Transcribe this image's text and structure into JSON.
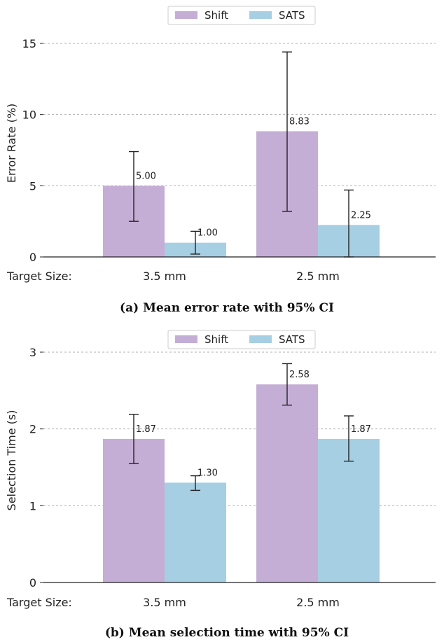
{
  "colors": {
    "shift": "#c5aed5",
    "sats": "#a6cfe3",
    "grid": "#b0b0b0",
    "axis": "#222222"
  },
  "chart_data": [
    {
      "type": "bar",
      "caption": "(a) Mean error rate with 95% CI",
      "ylabel": "Error Rate (%)",
      "xlabel": "Target Size:",
      "categories": [
        "3.5 mm",
        "2.5 mm"
      ],
      "ylim": [
        0,
        15
      ],
      "yticks": [
        0,
        5,
        10,
        15
      ],
      "grid": true,
      "legend_position": "top-center",
      "series": [
        {
          "name": "Shift",
          "values": [
            5.0,
            8.83
          ],
          "ci_low": [
            2.5,
            3.2
          ],
          "ci_high": [
            7.4,
            14.4
          ],
          "labels": [
            "5.00",
            "8.83"
          ]
        },
        {
          "name": "SATS",
          "values": [
            1.0,
            2.25
          ],
          "ci_low": [
            0.2,
            0.0
          ],
          "ci_high": [
            1.8,
            4.7
          ],
          "labels": [
            "1.00",
            "2.25"
          ]
        }
      ]
    },
    {
      "type": "bar",
      "caption": "(b) Mean selection time with 95% CI",
      "ylabel": "Selection Time (s)",
      "xlabel": "Target Size:",
      "categories": [
        "3.5 mm",
        "2.5 mm"
      ],
      "ylim": [
        0,
        3
      ],
      "yticks": [
        0,
        1,
        2,
        3
      ],
      "grid": true,
      "legend_position": "top-center",
      "series": [
        {
          "name": "Shift",
          "values": [
            1.87,
            2.58
          ],
          "ci_low": [
            1.55,
            2.31
          ],
          "ci_high": [
            2.19,
            2.85
          ],
          "labels": [
            "1.87",
            "2.58"
          ]
        },
        {
          "name": "SATS",
          "values": [
            1.3,
            1.87
          ],
          "ci_low": [
            1.2,
            1.58
          ],
          "ci_high": [
            1.39,
            2.17
          ],
          "labels": [
            "1.30",
            "1.87"
          ]
        }
      ]
    }
  ]
}
